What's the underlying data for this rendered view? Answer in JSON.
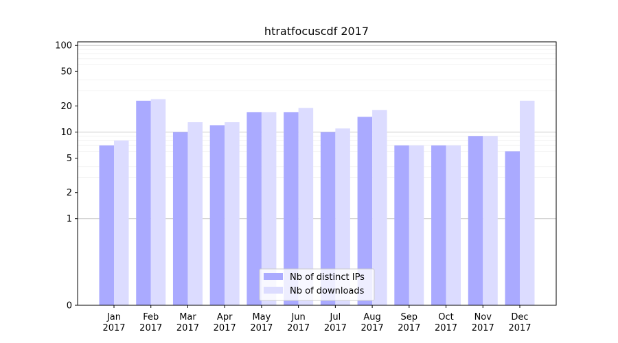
{
  "chart_data": {
    "type": "bar",
    "title": "htratfocuscdf 2017",
    "xlabel": "",
    "ylabel": "",
    "yscale": "symlog",
    "ylim": [
      0,
      110
    ],
    "yticks": [
      0,
      1,
      2,
      5,
      10,
      20,
      50,
      100
    ],
    "grid": true,
    "legend_position": "bottom-center",
    "categories": [
      [
        "Jan",
        "2017"
      ],
      [
        "Feb",
        "2017"
      ],
      [
        "Mar",
        "2017"
      ],
      [
        "Apr",
        "2017"
      ],
      [
        "May",
        "2017"
      ],
      [
        "Jun",
        "2017"
      ],
      [
        "Jul",
        "2017"
      ],
      [
        "Aug",
        "2017"
      ],
      [
        "Sep",
        "2017"
      ],
      [
        "Oct",
        "2017"
      ],
      [
        "Nov",
        "2017"
      ],
      [
        "Dec",
        "2017"
      ]
    ],
    "series": [
      {
        "name": "Nb of distinct IPs",
        "color": "#aaaaff",
        "values": [
          7,
          23,
          10,
          12,
          17,
          17,
          10,
          15,
          7,
          7,
          9,
          6
        ]
      },
      {
        "name": "Nb of downloads",
        "color": "#dcdcff",
        "values": [
          8,
          24,
          13,
          13,
          17,
          19,
          11,
          18,
          7,
          7,
          9,
          23
        ]
      }
    ]
  }
}
